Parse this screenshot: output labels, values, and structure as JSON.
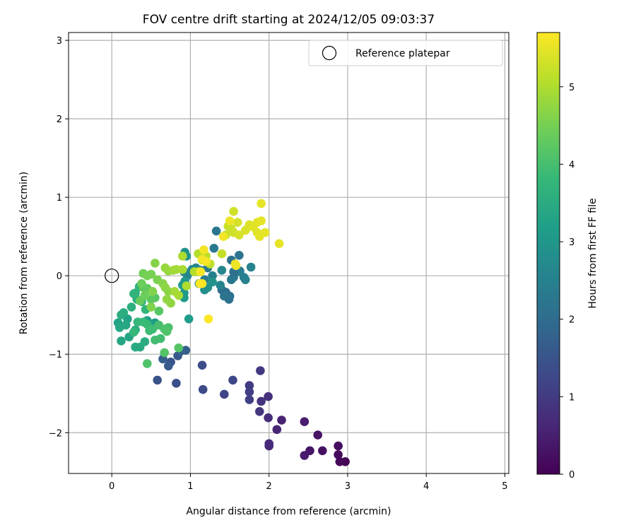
{
  "chart_data": {
    "type": "scatter",
    "title": "FOV centre drift starting at 2024/12/05 09:03:37",
    "xlabel": "Angular distance from reference (arcmin)",
    "ylabel": "Rotation from reference (arcmin)",
    "xlim": [
      -0.55,
      5.05
    ],
    "ylim": [
      -2.52,
      3.1
    ],
    "xticks": [
      0,
      1,
      2,
      3,
      4,
      5
    ],
    "yticks": [
      -2,
      -1,
      0,
      1,
      2,
      3
    ],
    "xtick_labels": [
      "0",
      "1",
      "2",
      "3",
      "4",
      "5"
    ],
    "ytick_labels": [
      "−2",
      "−1",
      "0",
      "1",
      "2",
      "3"
    ],
    "grid": true,
    "legend": {
      "placement": "upper-right",
      "entries": [
        {
          "label": "Reference platepar",
          "marker": "open-circle",
          "color": "#000000"
        }
      ]
    },
    "reference_point": {
      "x": 0,
      "y": 0
    },
    "colorbar": {
      "label": "Hours from first FF file",
      "colormap": "viridis",
      "range": [
        0,
        5.7
      ],
      "ticks": [
        0,
        1,
        2,
        3,
        4,
        5
      ],
      "tick_labels": [
        "0",
        "1",
        "2",
        "3",
        "4",
        "5"
      ]
    },
    "points": [
      [
        2.97,
        -2.37,
        0.05
      ],
      [
        2.9,
        -2.37,
        0.1
      ],
      [
        2.88,
        -2.28,
        0.15
      ],
      [
        2.88,
        -2.17,
        0.2
      ],
      [
        2.68,
        -2.23,
        0.25
      ],
      [
        2.62,
        -2.03,
        0.3
      ],
      [
        2.52,
        -2.23,
        0.35
      ],
      [
        2.45,
        -2.29,
        0.4
      ],
      [
        2.45,
        -1.86,
        0.45
      ],
      [
        2.16,
        -1.84,
        0.55
      ],
      [
        2.1,
        -1.96,
        0.6
      ],
      [
        2.0,
        -2.17,
        0.65
      ],
      [
        2.0,
        -2.14,
        0.7
      ],
      [
        1.99,
        -1.81,
        0.75
      ],
      [
        1.99,
        -1.54,
        0.8
      ],
      [
        1.9,
        -1.6,
        0.85
      ],
      [
        1.88,
        -1.73,
        0.9
      ],
      [
        1.89,
        -1.21,
        0.95
      ],
      [
        1.75,
        -1.4,
        1.0
      ],
      [
        1.75,
        -1.48,
        1.05
      ],
      [
        1.75,
        -1.58,
        1.1
      ],
      [
        1.43,
        -1.51,
        1.2
      ],
      [
        1.54,
        -1.33,
        1.25
      ],
      [
        1.16,
        -1.45,
        1.3
      ],
      [
        1.15,
        -1.14,
        1.35
      ],
      [
        0.82,
        -1.37,
        1.4
      ],
      [
        0.58,
        -1.33,
        1.45
      ],
      [
        0.75,
        -1.1,
        1.5
      ],
      [
        0.84,
        -1.02,
        1.55
      ],
      [
        0.72,
        -1.15,
        1.6
      ],
      [
        0.65,
        -1.06,
        1.65
      ],
      [
        0.94,
        -0.95,
        1.7
      ],
      [
        0.88,
        -0.96,
        1.75
      ],
      [
        1.4,
        -0.18,
        2.0
      ],
      [
        1.45,
        -0.21,
        2.05
      ],
      [
        1.49,
        -0.3,
        2.1
      ],
      [
        1.5,
        -0.26,
        2.15
      ],
      [
        1.43,
        -0.26,
        2.2
      ],
      [
        1.52,
        -0.05,
        2.25
      ],
      [
        1.55,
        -0.02,
        2.3
      ],
      [
        1.6,
        0.05,
        2.35
      ],
      [
        1.63,
        0.06,
        2.4
      ],
      [
        1.68,
        -0.02,
        2.45
      ],
      [
        1.7,
        -0.05,
        2.5
      ],
      [
        1.77,
        0.11,
        2.55
      ],
      [
        1.38,
        -0.12,
        2.6
      ],
      [
        1.4,
        0.07,
        2.65
      ],
      [
        1.55,
        0.05,
        2.1
      ],
      [
        1.52,
        0.2,
        2.15
      ],
      [
        1.62,
        0.26,
        2.2
      ],
      [
        1.33,
        0.57,
        2.25
      ],
      [
        1.3,
        0.35,
        2.3
      ],
      [
        1.22,
        0.1,
        2.35
      ],
      [
        1.18,
        -0.05,
        2.4
      ],
      [
        1.28,
        0.0,
        2.45
      ],
      [
        1.13,
        0.07,
        2.5
      ],
      [
        1.07,
        0.1,
        2.55
      ],
      [
        0.96,
        0.0,
        2.6
      ],
      [
        0.92,
        0.05,
        2.65
      ],
      [
        1.02,
        0.08,
        2.7
      ],
      [
        1.11,
        -0.1,
        2.75
      ],
      [
        1.18,
        -0.18,
        2.8
      ],
      [
        1.22,
        -0.15,
        2.85
      ],
      [
        1.28,
        -0.08,
        2.9
      ],
      [
        0.93,
        0.3,
        2.9
      ],
      [
        0.95,
        0.25,
        2.95
      ],
      [
        0.93,
        -0.07,
        3.0
      ],
      [
        0.92,
        -0.22,
        3.05
      ],
      [
        0.92,
        -0.28,
        3.1
      ],
      [
        0.9,
        -0.12,
        3.1
      ],
      [
        0.98,
        -0.55,
        3.15
      ],
      [
        0.55,
        -0.6,
        3.15
      ],
      [
        0.45,
        -0.57,
        3.2
      ],
      [
        0.2,
        -0.55,
        3.25
      ],
      [
        0.08,
        -0.6,
        3.3
      ],
      [
        0.12,
        -0.83,
        3.35
      ],
      [
        0.22,
        -0.78,
        3.35
      ],
      [
        0.1,
        -0.66,
        3.4
      ],
      [
        0.18,
        -0.63,
        3.4
      ],
      [
        0.3,
        -0.91,
        3.45
      ],
      [
        0.36,
        -0.91,
        3.45
      ],
      [
        0.42,
        -0.84,
        3.5
      ],
      [
        0.3,
        -0.69,
        3.5
      ],
      [
        0.12,
        -0.5,
        3.55
      ],
      [
        0.15,
        -0.47,
        3.55
      ],
      [
        0.25,
        -0.4,
        3.6
      ],
      [
        0.32,
        -0.3,
        3.6
      ],
      [
        0.3,
        -0.22,
        3.65
      ],
      [
        0.28,
        -0.23,
        3.7
      ],
      [
        0.35,
        -0.14,
        3.7
      ],
      [
        0.38,
        -0.33,
        3.75
      ],
      [
        0.43,
        -0.43,
        3.75
      ],
      [
        0.28,
        -0.72,
        3.8
      ],
      [
        0.33,
        -0.59,
        3.8
      ],
      [
        0.4,
        -0.59,
        3.85
      ],
      [
        0.45,
        -0.62,
        3.85
      ],
      [
        0.48,
        -0.7,
        3.9
      ],
      [
        0.52,
        -0.68,
        3.9
      ],
      [
        0.55,
        -0.82,
        3.95
      ],
      [
        0.62,
        -0.8,
        3.95
      ],
      [
        0.6,
        -0.63,
        4.0
      ],
      [
        0.67,
        -0.68,
        4.05
      ],
      [
        0.72,
        -0.66,
        4.05
      ],
      [
        0.7,
        -0.71,
        4.1
      ],
      [
        0.45,
        -1.12,
        4.1
      ],
      [
        0.67,
        -0.98,
        4.15
      ],
      [
        0.85,
        -0.92,
        4.15
      ],
      [
        0.6,
        -0.45,
        4.2
      ],
      [
        0.55,
        -0.28,
        4.2
      ],
      [
        0.5,
        -0.3,
        4.25
      ],
      [
        0.45,
        -0.16,
        4.3
      ],
      [
        0.4,
        -0.15,
        4.3
      ],
      [
        0.36,
        -0.32,
        4.35
      ],
      [
        0.42,
        -0.25,
        4.4
      ],
      [
        0.38,
        -0.1,
        4.4
      ],
      [
        0.4,
        0.03,
        4.45
      ],
      [
        0.45,
        0.0,
        4.5
      ],
      [
        0.5,
        0.02,
        4.5
      ],
      [
        0.58,
        -0.05,
        4.55
      ],
      [
        0.52,
        -0.2,
        4.6
      ],
      [
        0.5,
        -0.4,
        4.6
      ],
      [
        0.55,
        0.16,
        4.65
      ],
      [
        0.65,
        -0.1,
        4.65
      ],
      [
        0.68,
        -0.15,
        4.7
      ],
      [
        0.72,
        -0.2,
        4.7
      ],
      [
        0.7,
        -0.3,
        4.75
      ],
      [
        0.75,
        -0.35,
        4.75
      ],
      [
        0.68,
        0.1,
        4.8
      ],
      [
        0.72,
        0.06,
        4.8
      ],
      [
        0.78,
        0.07,
        4.85
      ],
      [
        0.82,
        0.08,
        4.9
      ],
      [
        0.8,
        -0.2,
        4.9
      ],
      [
        0.85,
        -0.25,
        4.95
      ],
      [
        0.9,
        0.08,
        4.95
      ],
      [
        0.95,
        -0.13,
        5.0
      ],
      [
        0.9,
        0.25,
        5.0
      ],
      [
        1.05,
        0.05,
        5.05
      ],
      [
        1.1,
        0.28,
        5.05
      ],
      [
        1.1,
        0.05,
        5.1
      ],
      [
        1.15,
        0.2,
        5.1
      ],
      [
        1.2,
        0.25,
        5.15
      ],
      [
        1.25,
        0.15,
        5.15
      ],
      [
        1.4,
        0.28,
        5.2
      ],
      [
        1.45,
        0.52,
        5.2
      ],
      [
        1.48,
        0.63,
        5.25
      ],
      [
        1.52,
        0.6,
        5.25
      ],
      [
        1.55,
        0.82,
        5.3
      ],
      [
        1.55,
        0.55,
        5.3
      ],
      [
        1.6,
        0.68,
        5.35
      ],
      [
        1.62,
        0.52,
        5.35
      ],
      [
        1.7,
        0.58,
        5.4
      ],
      [
        1.75,
        0.65,
        5.4
      ],
      [
        1.8,
        0.62,
        5.45
      ],
      [
        1.85,
        0.55,
        5.45
      ],
      [
        1.85,
        0.68,
        5.45
      ],
      [
        1.88,
        0.5,
        5.5
      ],
      [
        1.9,
        0.7,
        5.5
      ],
      [
        1.95,
        0.55,
        5.5
      ],
      [
        1.9,
        0.92,
        5.5
      ],
      [
        2.13,
        0.41,
        5.5
      ],
      [
        1.57,
        0.15,
        5.55
      ],
      [
        1.58,
        0.13,
        5.55
      ],
      [
        1.5,
        0.7,
        5.55
      ],
      [
        1.42,
        0.5,
        5.6
      ],
      [
        1.17,
        0.33,
        5.6
      ],
      [
        1.15,
        0.21,
        5.6
      ],
      [
        1.2,
        0.18,
        5.65
      ],
      [
        1.13,
        0.05,
        5.65
      ],
      [
        1.15,
        -0.1,
        5.65
      ],
      [
        1.12,
        -0.1,
        5.7
      ],
      [
        1.23,
        -0.55,
        5.7
      ]
    ]
  }
}
